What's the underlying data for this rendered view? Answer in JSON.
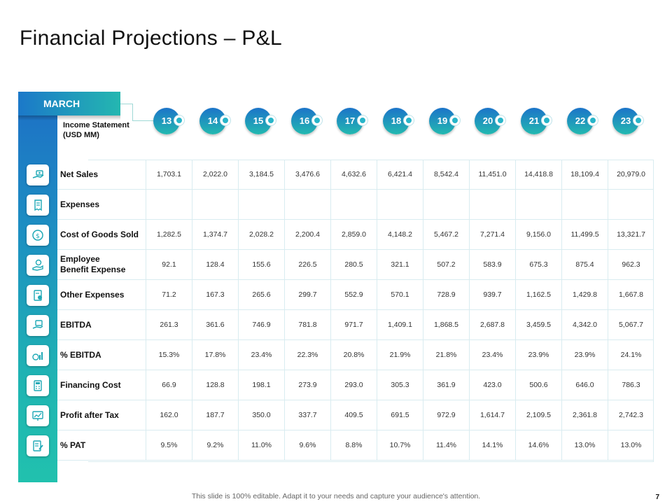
{
  "title": "Financial Projections – P&L",
  "month": "MARCH",
  "statement_label_line1": "Income Statement",
  "statement_label_line2": "(USD MM)",
  "columns": [
    "13",
    "14",
    "15",
    "16",
    "17",
    "18",
    "19",
    "20",
    "21",
    "22",
    "23"
  ],
  "rows": [
    {
      "label": "Net Sales",
      "icon": "money-hand-icon",
      "values": [
        "1,703.1",
        "2,022.0",
        "3,184.5",
        "3,476.6",
        "4,632.6",
        "6,421.4",
        "8,542.4",
        "11,451.0",
        "14,418.8",
        "18,109.4",
        "20,979.0"
      ]
    },
    {
      "label": "Expenses",
      "icon": "receipt-icon",
      "values": [
        "",
        "",
        "",
        "",
        "",
        "",
        "",
        "",
        "",
        "",
        ""
      ]
    },
    {
      "label": "Cost of Goods Sold",
      "icon": "dollar-coin-icon",
      "values": [
        "1,282.5",
        "1,374.7",
        "2,028.2",
        "2,200.4",
        "2,859.0",
        "4,148.2",
        "5,467.2",
        "7,271.4",
        "9,156.0",
        "11,499.5",
        "13,321.7"
      ]
    },
    {
      "label_line1": "Employee",
      "label_line2": "Benefit Expense",
      "icon": "hand-coin-icon",
      "values": [
        "92.1",
        "128.4",
        "155.6",
        "226.5",
        "280.5",
        "321.1",
        "507.2",
        "583.9",
        "675.3",
        "875.4",
        "962.3"
      ]
    },
    {
      "label": "Other Expenses",
      "icon": "invoice-icon",
      "values": [
        "71.2",
        "167.3",
        "265.6",
        "299.7",
        "552.9",
        "570.1",
        "728.9",
        "939.7",
        "1,162.5",
        "1,429.8",
        "1,667.8"
      ]
    },
    {
      "label": "EBITDA",
      "icon": "hand-money-icon",
      "values": [
        "261.3",
        "361.6",
        "746.9",
        "781.8",
        "971.7",
        "1,409.1",
        "1,868.5",
        "2,687.8",
        "3,459.5",
        "4,342.0",
        "5,067.7"
      ]
    },
    {
      "label": "% EBITDA",
      "icon": "growth-chart-icon",
      "values": [
        "15.3%",
        "17.8%",
        "23.4%",
        "22.3%",
        "20.8%",
        "21.9%",
        "21.8%",
        "23.4%",
        "23.9%",
        "23.9%",
        "24.1%"
      ]
    },
    {
      "label": "Financing Cost",
      "icon": "calculator-icon",
      "values": [
        "66.9",
        "128.8",
        "198.1",
        "273.9",
        "293.0",
        "305.3",
        "361.9",
        "423.0",
        "500.6",
        "646.0",
        "786.3"
      ]
    },
    {
      "label": "Profit after Tax",
      "icon": "monitor-chart-icon",
      "values": [
        "162.0",
        "187.7",
        "350.0",
        "337.7",
        "409.5",
        "691.5",
        "972.9",
        "1,614.7",
        "2,109.5",
        "2,361.8",
        "2,742.3"
      ]
    },
    {
      "label": "% PAT",
      "icon": "document-pen-icon",
      "values": [
        "9.5%",
        "9.2%",
        "11.0%",
        "9.6%",
        "8.8%",
        "10.7%",
        "11.4%",
        "14.1%",
        "14.6%",
        "13.0%",
        "13.0%"
      ]
    }
  ],
  "footer": "This slide is 100% editable. Adapt it to your needs and capture your audience's attention.",
  "page_number": "7",
  "colors": {
    "accent_blue": "#1d6fc6",
    "accent_teal": "#21c1ae",
    "grid": "#d9ecf0",
    "icon": "#1fa9b6"
  }
}
